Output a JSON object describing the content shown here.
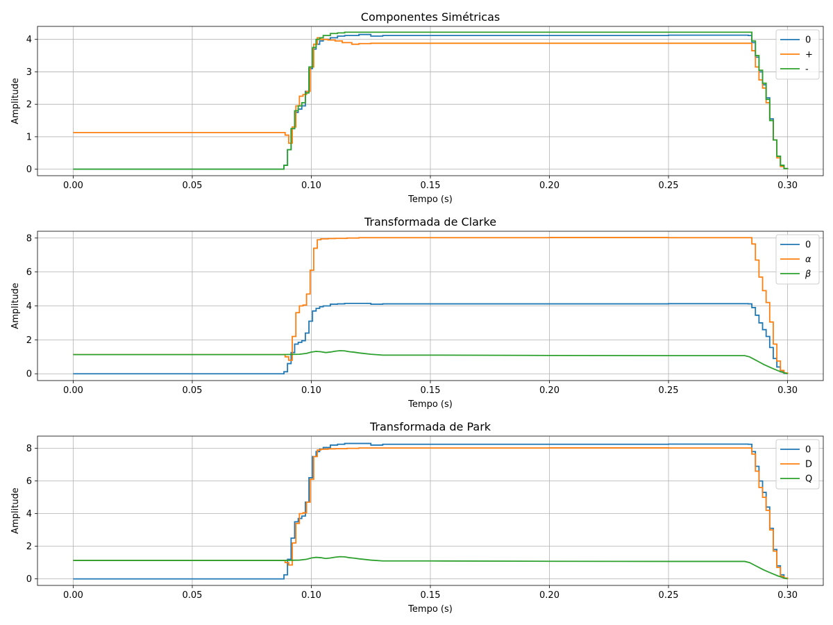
{
  "chart_data": [
    {
      "type": "line",
      "title": "Componentes Simétricas",
      "xlabel": "Tempo (s)",
      "ylabel": "Amplitude",
      "xlim": [
        -0.015,
        0.315
      ],
      "ylim": [
        -0.2,
        4.4
      ],
      "xticks": [
        0.0,
        0.05,
        0.1,
        0.15,
        0.2,
        0.25,
        0.3
      ],
      "xtick_labels": [
        "0.00",
        "0.05",
        "0.10",
        "0.15",
        "0.20",
        "0.25",
        "0.30"
      ],
      "yticks": [
        0,
        1,
        2,
        3,
        4
      ],
      "ytick_labels": [
        "0",
        "1",
        "2",
        "3",
        "4"
      ],
      "grid": true,
      "legend": "upper-right",
      "series": [
        {
          "name": "0",
          "color": "#1f77b4",
          "step": true,
          "x": [
            0,
            0.0875,
            0.0885,
            0.09,
            0.0915,
            0.093,
            0.0945,
            0.096,
            0.0975,
            0.099,
            0.1005,
            0.102,
            0.1035,
            0.105,
            0.108,
            0.111,
            0.114,
            0.12,
            0.125,
            0.13,
            0.15,
            0.2,
            0.25,
            0.2835,
            0.285,
            0.2865,
            0.288,
            0.2895,
            0.291,
            0.2925,
            0.294,
            0.2955,
            0.297,
            0.2985,
            0.3
          ],
          "y": [
            0,
            0,
            0.12,
            0.6,
            1.25,
            1.75,
            1.85,
            1.95,
            2.4,
            3.1,
            3.7,
            3.85,
            3.95,
            4.0,
            4.05,
            4.1,
            4.12,
            4.15,
            4.1,
            4.12,
            4.12,
            4.12,
            4.13,
            4.12,
            3.9,
            3.45,
            3.0,
            2.6,
            2.2,
            1.55,
            0.9,
            0.4,
            0.12,
            0.02,
            0
          ]
        },
        {
          "name": "+",
          "color": "#ff7f0e",
          "step": true,
          "x": [
            0,
            0.0875,
            0.089,
            0.0905,
            0.092,
            0.0935,
            0.095,
            0.0965,
            0.098,
            0.0995,
            0.101,
            0.1025,
            0.104,
            0.107,
            0.11,
            0.113,
            0.117,
            0.12,
            0.125,
            0.13,
            0.15,
            0.2,
            0.25,
            0.2835,
            0.285,
            0.2865,
            0.288,
            0.2895,
            0.291,
            0.2925,
            0.294,
            0.2955,
            0.297,
            0.2985,
            0.3
          ],
          "y": [
            1.13,
            1.13,
            1.05,
            0.8,
            1.3,
            1.95,
            2.25,
            2.3,
            2.4,
            3.15,
            3.85,
            4.05,
            4.0,
            3.98,
            3.95,
            3.9,
            3.85,
            3.87,
            3.88,
            3.88,
            3.88,
            3.88,
            3.88,
            3.88,
            3.65,
            3.15,
            2.75,
            2.5,
            2.05,
            1.5,
            0.9,
            0.35,
            0.08,
            0.02,
            0
          ]
        },
        {
          "name": "-",
          "color": "#2ca02c",
          "step": true,
          "x": [
            0,
            0.0875,
            0.0885,
            0.09,
            0.0915,
            0.093,
            0.0945,
            0.096,
            0.0975,
            0.099,
            0.1005,
            0.102,
            0.1035,
            0.105,
            0.108,
            0.111,
            0.114,
            0.12,
            0.15,
            0.2,
            0.25,
            0.2835,
            0.285,
            0.2865,
            0.288,
            0.2895,
            0.291,
            0.2925,
            0.294,
            0.2955,
            0.297,
            0.2985,
            0.3
          ],
          "y": [
            0,
            0,
            0.12,
            0.6,
            1.25,
            1.8,
            1.95,
            2.05,
            2.35,
            3.15,
            3.75,
            4.0,
            4.05,
            4.12,
            4.18,
            4.2,
            4.22,
            4.22,
            4.22,
            4.22,
            4.22,
            4.22,
            3.95,
            3.5,
            3.05,
            2.65,
            2.15,
            1.5,
            0.9,
            0.4,
            0.12,
            0.02,
            0
          ]
        }
      ]
    },
    {
      "type": "line",
      "title": "Transformada de Clarke",
      "xlabel": "Tempo (s)",
      "ylabel": "Amplitude",
      "xlim": [
        -0.015,
        0.315
      ],
      "ylim": [
        -0.4,
        8.4
      ],
      "xticks": [
        0.0,
        0.05,
        0.1,
        0.15,
        0.2,
        0.25,
        0.3
      ],
      "xtick_labels": [
        "0.00",
        "0.05",
        "0.10",
        "0.15",
        "0.20",
        "0.25",
        "0.30"
      ],
      "yticks": [
        0,
        2,
        4,
        6,
        8
      ],
      "ytick_labels": [
        "0",
        "2",
        "4",
        "6",
        "8"
      ],
      "grid": true,
      "legend": "upper-right",
      "series": [
        {
          "name": "0",
          "color": "#1f77b4",
          "step": true,
          "x": [
            0,
            0.0875,
            0.0885,
            0.09,
            0.0915,
            0.093,
            0.0945,
            0.096,
            0.0975,
            0.099,
            0.1005,
            0.102,
            0.1035,
            0.105,
            0.108,
            0.111,
            0.114,
            0.12,
            0.125,
            0.13,
            0.15,
            0.2,
            0.25,
            0.2835,
            0.285,
            0.2865,
            0.288,
            0.2895,
            0.291,
            0.2925,
            0.294,
            0.2955,
            0.297,
            0.2985,
            0.3
          ],
          "y": [
            0,
            0,
            0.12,
            0.6,
            1.25,
            1.75,
            1.85,
            1.95,
            2.4,
            3.1,
            3.7,
            3.85,
            3.95,
            4.0,
            4.1,
            4.12,
            4.15,
            4.15,
            4.1,
            4.12,
            4.12,
            4.12,
            4.13,
            4.12,
            3.9,
            3.45,
            3.0,
            2.6,
            2.2,
            1.55,
            0.9,
            0.4,
            0.12,
            0.02,
            0
          ]
        },
        {
          "name": "α",
          "color": "#ff7f0e",
          "step": true,
          "x": [
            0,
            0.0875,
            0.089,
            0.0905,
            0.092,
            0.0935,
            0.095,
            0.0965,
            0.098,
            0.0995,
            0.101,
            0.1025,
            0.104,
            0.107,
            0.11,
            0.115,
            0.12,
            0.15,
            0.2,
            0.25,
            0.2835,
            0.285,
            0.2865,
            0.288,
            0.2895,
            0.291,
            0.2925,
            0.294,
            0.2955,
            0.297,
            0.2985,
            0.3
          ],
          "y": [
            1.13,
            1.13,
            1.0,
            0.8,
            2.2,
            3.6,
            4.0,
            4.05,
            4.7,
            6.1,
            7.4,
            7.9,
            7.95,
            7.97,
            7.98,
            8.0,
            8.02,
            8.02,
            8.03,
            8.02,
            8.02,
            7.65,
            6.7,
            5.7,
            4.9,
            4.2,
            3.05,
            1.75,
            0.75,
            0.2,
            0.05,
            0
          ]
        },
        {
          "name": "β",
          "color": "#2ca02c",
          "step": false,
          "x": [
            0,
            0.0875,
            0.095,
            0.098,
            0.1,
            0.102,
            0.104,
            0.106,
            0.108,
            0.11,
            0.112,
            0.114,
            0.116,
            0.118,
            0.12,
            0.125,
            0.13,
            0.15,
            0.2,
            0.25,
            0.282,
            0.284,
            0.286,
            0.288,
            0.29,
            0.292,
            0.294,
            0.296,
            0.298,
            0.3
          ],
          "y": [
            1.13,
            1.13,
            1.15,
            1.2,
            1.28,
            1.32,
            1.3,
            1.25,
            1.28,
            1.33,
            1.36,
            1.35,
            1.3,
            1.27,
            1.23,
            1.15,
            1.1,
            1.1,
            1.08,
            1.07,
            1.07,
            1.0,
            0.85,
            0.7,
            0.55,
            0.42,
            0.3,
            0.18,
            0.08,
            0
          ]
        }
      ]
    },
    {
      "type": "line",
      "title": "Transformada de Park",
      "xlabel": "Tempo (s)",
      "ylabel": "Amplitude",
      "xlim": [
        -0.015,
        0.315
      ],
      "ylim": [
        -0.4,
        8.75
      ],
      "xticks": [
        0.0,
        0.05,
        0.1,
        0.15,
        0.2,
        0.25,
        0.3
      ],
      "xtick_labels": [
        "0.00",
        "0.05",
        "0.10",
        "0.15",
        "0.20",
        "0.25",
        "0.30"
      ],
      "yticks": [
        0,
        2,
        4,
        6,
        8
      ],
      "ytick_labels": [
        "0",
        "2",
        "4",
        "6",
        "8"
      ],
      "grid": true,
      "legend": "upper-right",
      "series": [
        {
          "name": "0",
          "color": "#1f77b4",
          "step": true,
          "x": [
            0,
            0.0875,
            0.0885,
            0.09,
            0.0915,
            0.093,
            0.0945,
            0.096,
            0.0975,
            0.099,
            0.1005,
            0.102,
            0.1035,
            0.105,
            0.108,
            0.111,
            0.114,
            0.12,
            0.125,
            0.13,
            0.15,
            0.2,
            0.25,
            0.2835,
            0.285,
            0.2865,
            0.288,
            0.2895,
            0.291,
            0.2925,
            0.294,
            0.2955,
            0.297,
            0.2985,
            0.3
          ],
          "y": [
            0,
            0,
            0.25,
            1.2,
            2.5,
            3.5,
            3.7,
            3.85,
            4.7,
            6.2,
            7.5,
            7.8,
            7.95,
            8.05,
            8.2,
            8.25,
            8.3,
            8.3,
            8.2,
            8.25,
            8.25,
            8.25,
            8.26,
            8.25,
            7.8,
            6.9,
            6.0,
            5.3,
            4.4,
            3.1,
            1.8,
            0.8,
            0.25,
            0.05,
            0
          ]
        },
        {
          "name": "D",
          "color": "#ff7f0e",
          "step": true,
          "x": [
            0,
            0.0875,
            0.089,
            0.0905,
            0.092,
            0.0935,
            0.095,
            0.0965,
            0.098,
            0.0995,
            0.101,
            0.1025,
            0.104,
            0.107,
            0.11,
            0.115,
            0.12,
            0.15,
            0.2,
            0.25,
            0.2835,
            0.285,
            0.2865,
            0.288,
            0.2895,
            0.291,
            0.2925,
            0.294,
            0.2955,
            0.297,
            0.2985,
            0.3
          ],
          "y": [
            1.13,
            1.13,
            1.0,
            0.85,
            2.2,
            3.4,
            4.0,
            4.05,
            4.7,
            6.1,
            7.5,
            7.9,
            7.95,
            7.97,
            7.98,
            8.0,
            8.02,
            8.02,
            8.03,
            8.02,
            8.02,
            7.65,
            6.6,
            5.6,
            5.0,
            4.2,
            3.0,
            1.7,
            0.7,
            0.15,
            0.05,
            0
          ]
        },
        {
          "name": "Q",
          "color": "#2ca02c",
          "step": false,
          "x": [
            0,
            0.0875,
            0.095,
            0.098,
            0.1,
            0.102,
            0.104,
            0.106,
            0.108,
            0.11,
            0.112,
            0.114,
            0.116,
            0.118,
            0.12,
            0.125,
            0.13,
            0.15,
            0.2,
            0.25,
            0.282,
            0.284,
            0.286,
            0.288,
            0.29,
            0.292,
            0.294,
            0.296,
            0.298,
            0.3
          ],
          "y": [
            1.13,
            1.13,
            1.15,
            1.2,
            1.28,
            1.32,
            1.3,
            1.25,
            1.28,
            1.33,
            1.36,
            1.35,
            1.3,
            1.27,
            1.23,
            1.15,
            1.1,
            1.1,
            1.08,
            1.07,
            1.07,
            1.0,
            0.85,
            0.7,
            0.55,
            0.42,
            0.3,
            0.18,
            0.08,
            0
          ]
        }
      ]
    }
  ]
}
